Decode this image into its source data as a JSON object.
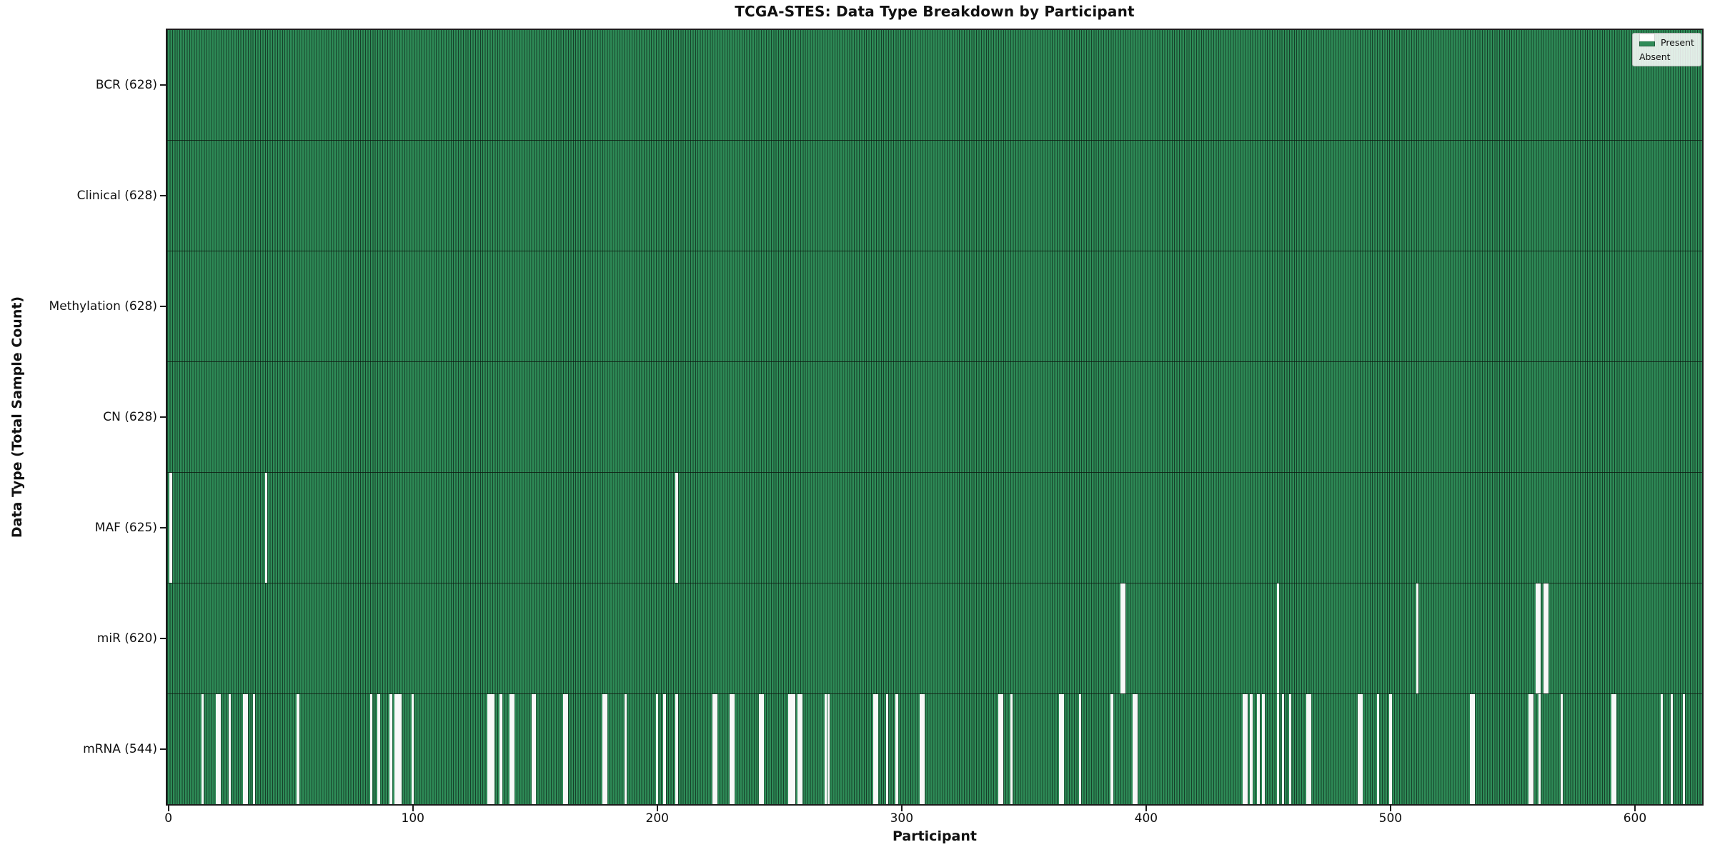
{
  "title": "TCGA-STES: Data Type Breakdown by Participant",
  "xlabel": "Participant",
  "ylabel": "Data Type (Total Sample Count)",
  "legend": {
    "present_label": "Present",
    "absent_label": "Absent",
    "position": "upper right"
  },
  "colors": {
    "present": "#2e8b57",
    "absent": "#f8f8f8",
    "bar_edge": "#16402a",
    "axis": "#1c1c1c"
  },
  "chart_data": {
    "type": "heatmap",
    "title": "TCGA-STES: Data Type Breakdown by Participant",
    "xlabel": "Participant",
    "ylabel": "Data Type (Total Sample Count)",
    "n_participants": 628,
    "xlim": [
      -0.5,
      627.5
    ],
    "x_ticks": [
      0,
      100,
      200,
      300,
      400,
      500,
      600
    ],
    "grid": false,
    "legend_entries": [
      "Present",
      "Absent"
    ],
    "legend_position": "upper right",
    "categories": [
      "BCR (628)",
      "Clinical (628)",
      "Methylation (628)",
      "CN (628)",
      "MAF (625)",
      "miR (620)",
      "mRNA (544)"
    ],
    "values": [
      628,
      628,
      628,
      628,
      625,
      620,
      544
    ],
    "rows": [
      {
        "label": "BCR (628)",
        "data_type": "BCR",
        "present_count": 628,
        "absent_indices": []
      },
      {
        "label": "Clinical (628)",
        "data_type": "Clinical",
        "present_count": 628,
        "absent_indices": []
      },
      {
        "label": "Methylation (628)",
        "data_type": "Methylation",
        "present_count": 628,
        "absent_indices": []
      },
      {
        "label": "CN (628)",
        "data_type": "CN",
        "present_count": 628,
        "absent_indices": []
      },
      {
        "label": "MAF (625)",
        "data_type": "MAF",
        "present_count": 625,
        "absent_indices": [
          1,
          40,
          208
        ]
      },
      {
        "label": "miR (620)",
        "data_type": "miR",
        "present_count": 620,
        "absent_indices": [
          390,
          391,
          454,
          511,
          560,
          561,
          563,
          564
        ]
      },
      {
        "label": "mRNA (544)",
        "data_type": "mRNA",
        "present_count": 544,
        "absent_indices": [
          14,
          20,
          21,
          25,
          31,
          32,
          35,
          53,
          83,
          86,
          91,
          93,
          94,
          95,
          100,
          131,
          132,
          133,
          136,
          140,
          141,
          149,
          150,
          162,
          163,
          178,
          179,
          187,
          200,
          203,
          208,
          223,
          224,
          230,
          231,
          242,
          243,
          254,
          255,
          256,
          258,
          259,
          269,
          270,
          289,
          290,
          294,
          298,
          308,
          309,
          340,
          341,
          345,
          365,
          366,
          373,
          386,
          395,
          396,
          440,
          441,
          443,
          446,
          448,
          454,
          456,
          459,
          466,
          467,
          487,
          488,
          495,
          500,
          533,
          534,
          557,
          558,
          561,
          570,
          591,
          592,
          611,
          615,
          620
        ]
      }
    ]
  }
}
